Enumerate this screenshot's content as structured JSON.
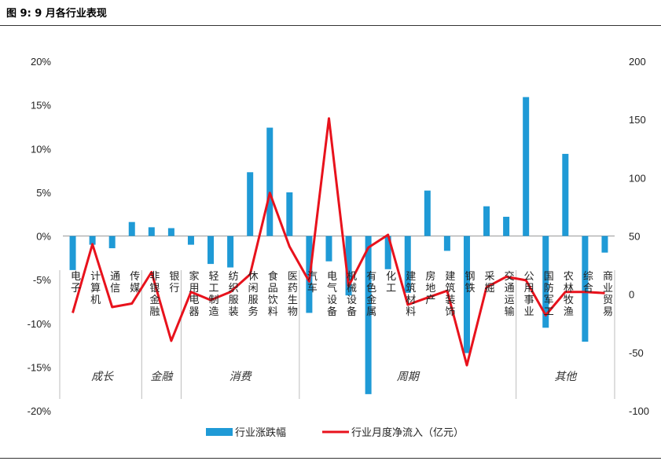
{
  "figure_title": "图 9:  9 月各行业表现",
  "chart_data": {
    "type": "bar+line",
    "categories": [
      "电子",
      "计算机",
      "通信",
      "传媒",
      "非银金融",
      "银行",
      "家用电器",
      "轻工制造",
      "纺织服装",
      "休闲服务",
      "食品饮料",
      "医药生物",
      "汽车",
      "电气设备",
      "机械设备",
      "有色金属",
      "化工",
      "建筑材料",
      "房地产",
      "建筑装饰",
      "钢铁",
      "采掘",
      "交通运输",
      "公用事业",
      "国防军工",
      "农林牧渔",
      "综合",
      "商业贸易"
    ],
    "series": [
      {
        "name": "行业涨跌幅",
        "type": "bar",
        "axis": "left",
        "color": "#1f9ad6",
        "values": [
          -3.9,
          -1.0,
          -1.4,
          1.6,
          1.0,
          0.9,
          -1.0,
          -3.2,
          -3.6,
          7.3,
          12.4,
          5.0,
          -8.8,
          -2.9,
          -6.8,
          -18.1,
          -3.8,
          -6.5,
          5.2,
          -1.7,
          -13.4,
          3.4,
          2.2,
          15.9,
          -10.5,
          9.4,
          -12.1,
          -1.9
        ]
      },
      {
        "name": "行业月度净流入（亿元）",
        "type": "line",
        "axis": "right",
        "color": "#e8121c",
        "values": [
          -16,
          43,
          -11,
          -8,
          19,
          -40,
          2,
          -5,
          2,
          17,
          87,
          41,
          11,
          151,
          7,
          40,
          51,
          -9,
          -3,
          3,
          -61,
          6,
          15,
          12,
          -18,
          2,
          2,
          1
        ]
      }
    ],
    "y_left": {
      "min": -20,
      "max": 20,
      "step": 5,
      "ticks": [
        "20%",
        "15%",
        "10%",
        "5%",
        "0%",
        "-5%",
        "-10%",
        "-15%",
        "-20%"
      ]
    },
    "y_right": {
      "min": -100,
      "max": 200,
      "step": 50,
      "ticks": [
        "200",
        "150",
        "100",
        "50",
        "0",
        "-50",
        "-100"
      ]
    },
    "groups": [
      {
        "label": "成长",
        "from": 0,
        "to": 3
      },
      {
        "label": "金融",
        "from": 4,
        "to": 5
      },
      {
        "label": "消费",
        "from": 6,
        "to": 11
      },
      {
        "label": "周期",
        "from": 12,
        "to": 22
      },
      {
        "label": "其他",
        "from": 23,
        "to": 27
      }
    ],
    "legend": {
      "position": "bottom",
      "bar_label": "行业涨跌幅",
      "line_label": "行业月度净流入（亿元）"
    }
  }
}
